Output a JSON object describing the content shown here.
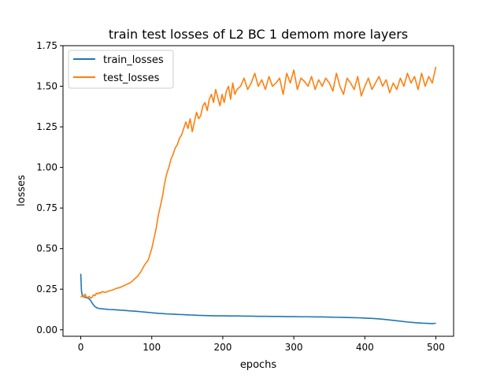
{
  "chart_data": {
    "type": "line",
    "title": "train test losses of L2 BC 1 demom more layers",
    "xlabel": "epochs",
    "ylabel": "losses",
    "xlim": [
      -25,
      525
    ],
    "ylim": [
      -0.04,
      1.75
    ],
    "xticks": [
      0,
      100,
      200,
      300,
      400,
      500
    ],
    "xtick_labels": [
      "0",
      "100",
      "200",
      "300",
      "400",
      "500"
    ],
    "yticks": [
      0.0,
      0.25,
      0.5,
      0.75,
      1.0,
      1.25,
      1.5,
      1.75
    ],
    "ytick_labels": [
      "0.00",
      "0.25",
      "0.50",
      "0.75",
      "1.00",
      "1.25",
      "1.50",
      "1.75"
    ],
    "grid": false,
    "legend_position": "top-left",
    "series": [
      {
        "name": "train_losses",
        "color": "#1f77b4",
        "x": [
          0,
          1,
          2,
          4,
          6,
          8,
          10,
          12,
          14,
          16,
          18,
          20,
          22,
          24,
          26,
          28,
          30,
          35,
          40,
          45,
          50,
          55,
          60,
          65,
          70,
          75,
          80,
          85,
          90,
          95,
          100,
          105,
          110,
          115,
          120,
          125,
          130,
          135,
          140,
          145,
          150,
          155,
          160,
          165,
          170,
          180,
          190,
          200,
          210,
          220,
          230,
          240,
          250,
          260,
          270,
          280,
          290,
          300,
          310,
          320,
          330,
          340,
          350,
          360,
          370,
          380,
          390,
          400,
          410,
          420,
          430,
          440,
          450,
          460,
          470,
          480,
          490,
          495,
          500
        ],
        "y": [
          0.345,
          0.24,
          0.215,
          0.205,
          0.2,
          0.197,
          0.195,
          0.19,
          0.18,
          0.165,
          0.152,
          0.143,
          0.137,
          0.133,
          0.131,
          0.13,
          0.129,
          0.127,
          0.125,
          0.124,
          0.123,
          0.121,
          0.12,
          0.118,
          0.116,
          0.115,
          0.113,
          0.111,
          0.109,
          0.107,
          0.105,
          0.103,
          0.101,
          0.1,
          0.098,
          0.097,
          0.096,
          0.095,
          0.094,
          0.093,
          0.092,
          0.091,
          0.09,
          0.089,
          0.088,
          0.087,
          0.086,
          0.086,
          0.085,
          0.085,
          0.084,
          0.084,
          0.083,
          0.083,
          0.082,
          0.082,
          0.081,
          0.081,
          0.08,
          0.08,
          0.079,
          0.079,
          0.078,
          0.077,
          0.076,
          0.075,
          0.074,
          0.072,
          0.07,
          0.067,
          0.063,
          0.058,
          0.053,
          0.048,
          0.044,
          0.041,
          0.039,
          0.038,
          0.04
        ]
      },
      {
        "name": "test_losses",
        "color": "#ff7f0e",
        "x": [
          0,
          2,
          4,
          6,
          8,
          10,
          12,
          14,
          16,
          18,
          20,
          22,
          24,
          26,
          28,
          30,
          35,
          40,
          45,
          50,
          55,
          60,
          65,
          70,
          75,
          80,
          85,
          90,
          95,
          100,
          103,
          106,
          109,
          112,
          115,
          118,
          121,
          124,
          127,
          130,
          133,
          136,
          139,
          142,
          145,
          148,
          151,
          154,
          157,
          160,
          163,
          166,
          169,
          172,
          175,
          178,
          181,
          184,
          187,
          190,
          193,
          196,
          199,
          202,
          205,
          208,
          211,
          214,
          217,
          220,
          225,
          230,
          235,
          240,
          245,
          250,
          255,
          260,
          265,
          270,
          275,
          280,
          285,
          290,
          295,
          300,
          305,
          310,
          315,
          320,
          325,
          330,
          335,
          340,
          345,
          350,
          355,
          360,
          365,
          370,
          375,
          380,
          385,
          390,
          395,
          400,
          405,
          410,
          415,
          420,
          425,
          430,
          435,
          440,
          445,
          450,
          455,
          460,
          465,
          470,
          475,
          480,
          485,
          490,
          495,
          500
        ],
        "y": [
          0.2,
          0.21,
          0.2,
          0.22,
          0.2,
          0.2,
          0.205,
          0.195,
          0.2,
          0.215,
          0.21,
          0.225,
          0.22,
          0.23,
          0.225,
          0.235,
          0.23,
          0.24,
          0.245,
          0.255,
          0.26,
          0.27,
          0.28,
          0.29,
          0.31,
          0.33,
          0.36,
          0.4,
          0.43,
          0.5,
          0.56,
          0.62,
          0.7,
          0.76,
          0.82,
          0.9,
          0.96,
          1.0,
          1.05,
          1.08,
          1.12,
          1.14,
          1.18,
          1.2,
          1.24,
          1.28,
          1.24,
          1.3,
          1.22,
          1.28,
          1.34,
          1.3,
          1.32,
          1.38,
          1.4,
          1.35,
          1.42,
          1.45,
          1.4,
          1.48,
          1.43,
          1.38,
          1.45,
          1.4,
          1.47,
          1.5,
          1.42,
          1.52,
          1.45,
          1.48,
          1.5,
          1.55,
          1.48,
          1.52,
          1.58,
          1.5,
          1.54,
          1.48,
          1.56,
          1.5,
          1.52,
          1.55,
          1.45,
          1.58,
          1.52,
          1.6,
          1.48,
          1.55,
          1.53,
          1.5,
          1.56,
          1.48,
          1.54,
          1.5,
          1.55,
          1.52,
          1.47,
          1.58,
          1.5,
          1.45,
          1.55,
          1.52,
          1.48,
          1.56,
          1.44,
          1.5,
          1.55,
          1.48,
          1.52,
          1.56,
          1.5,
          1.54,
          1.46,
          1.52,
          1.48,
          1.55,
          1.5,
          1.58,
          1.52,
          1.56,
          1.48,
          1.58,
          1.5,
          1.56,
          1.52,
          1.62
        ]
      }
    ]
  }
}
